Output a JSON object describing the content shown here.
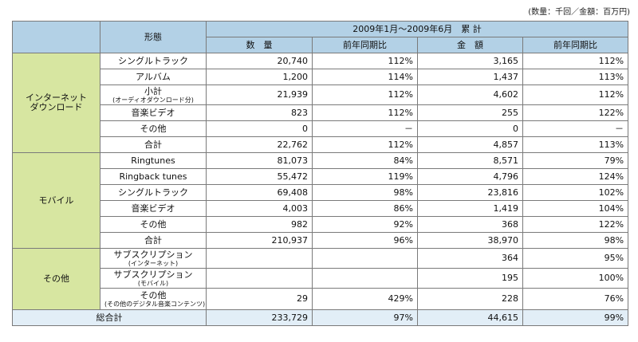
{
  "unit_note": "(数量：千回／金額：百万円)",
  "header": {
    "form": "形態",
    "period": "2009年1月～2009年6月　累 計",
    "qty": "数　量",
    "yoy1": "前年同期比",
    "amount": "金　額",
    "yoy2": "前年同期比"
  },
  "groups": {
    "internet": "インターネット\nダウンロード",
    "mobile": "モバイル",
    "other": "その他"
  },
  "rows": [
    {
      "label": "シングルトラック",
      "qty": "20,740",
      "yoy1": "112%",
      "amount": "3,165",
      "yoy2": "112%"
    },
    {
      "label": "アルバム",
      "qty": "1,200",
      "yoy1": "114%",
      "amount": "1,437",
      "yoy2": "113%"
    },
    {
      "label": "小計",
      "sub": "(オーディオダウンロード分)",
      "qty": "21,939",
      "yoy1": "112%",
      "amount": "4,602",
      "yoy2": "112%"
    },
    {
      "label": "音楽ビデオ",
      "qty": "823",
      "yoy1": "112%",
      "amount": "255",
      "yoy2": "122%"
    },
    {
      "label": "その他",
      "qty": "0",
      "yoy1": "－",
      "amount": "0",
      "yoy2": "－"
    },
    {
      "label": "合計",
      "qty": "22,762",
      "yoy1": "112%",
      "amount": "4,857",
      "yoy2": "113%"
    },
    {
      "label": "Ringtunes",
      "qty": "81,073",
      "yoy1": "84%",
      "amount": "8,571",
      "yoy2": "79%"
    },
    {
      "label": "Ringback tunes",
      "qty": "55,472",
      "yoy1": "119%",
      "amount": "4,796",
      "yoy2": "124%"
    },
    {
      "label": "シングルトラック",
      "qty": "69,408",
      "yoy1": "98%",
      "amount": "23,816",
      "yoy2": "102%"
    },
    {
      "label": "音楽ビデオ",
      "qty": "4,003",
      "yoy1": "86%",
      "amount": "1,419",
      "yoy2": "104%"
    },
    {
      "label": "その他",
      "qty": "982",
      "yoy1": "92%",
      "amount": "368",
      "yoy2": "122%"
    },
    {
      "label": "合計",
      "qty": "210,937",
      "yoy1": "96%",
      "amount": "38,970",
      "yoy2": "98%"
    },
    {
      "label": "サブスクリプション",
      "sub": "(インターネット)",
      "qty": "",
      "yoy1": "",
      "amount": "364",
      "yoy2": "95%"
    },
    {
      "label": "サブスクリプション",
      "sub": "(モバイル)",
      "qty": "",
      "yoy1": "",
      "amount": "195",
      "yoy2": "100%"
    },
    {
      "label": "その他",
      "sub": "(その他のデジタル音楽コンテンツ)",
      "qty": "29",
      "yoy1": "429%",
      "amount": "228",
      "yoy2": "76%"
    }
  ],
  "grand_total": {
    "label": "総合計",
    "qty": "233,729",
    "yoy1": "97%",
    "amount": "44,615",
    "yoy2": "99%"
  }
}
